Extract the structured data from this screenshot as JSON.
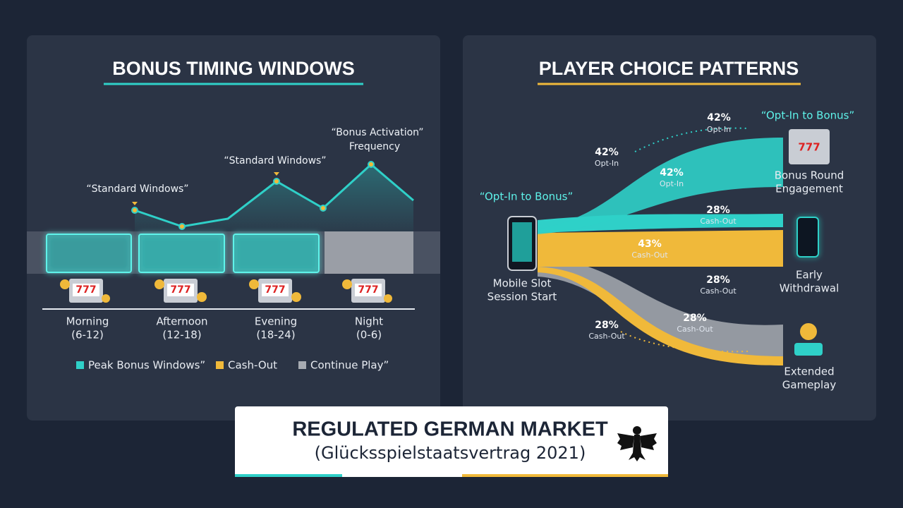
{
  "left_panel": {
    "title": "BONUS TIMING WINDOWS",
    "annotations": [
      "“Standard Windows”",
      "“Standard Windows”",
      [
        "“Bonus Activation”",
        "Frequency"
      ]
    ],
    "periods": [
      {
        "name": "Morning",
        "hours": "(6-12)"
      },
      {
        "name": "Afternoon",
        "hours": "(12-18)"
      },
      {
        "name": "Evening",
        "hours": "(18-24)"
      },
      {
        "name": "Night",
        "hours": "(0-6)"
      }
    ],
    "legend": [
      "Peak Bonus Windows”",
      "Cash-Out",
      "Continue Play”"
    ]
  },
  "right_panel": {
    "title": "PLAYER CHOICE PATTERNS",
    "source": {
      "tag": "“Opt-In to Bonus”",
      "label": [
        "Mobile Slot",
        "Session Start"
      ]
    },
    "targets": [
      {
        "tag": "“Opt-In to Bonus”",
        "label": [
          "Bonus Round",
          "Engagement"
        ]
      },
      {
        "label": [
          "Early",
          "Withdrawal"
        ]
      },
      {
        "label": [
          "Extended",
          "Gameplay"
        ]
      }
    ],
    "flow_labels": [
      {
        "pct": "42%",
        "kind": "Opt-In"
      },
      {
        "pct": "42%",
        "kind": "Opt-In"
      },
      {
        "pct": "42%",
        "kind": "Opt-In"
      },
      {
        "pct": "28%",
        "kind": "Cash-Out"
      },
      {
        "pct": "43%",
        "kind": "Cash-Out"
      },
      {
        "pct": "28%",
        "kind": "Cash-Out"
      },
      {
        "pct": "28%",
        "kind": "Cash-Out"
      },
      {
        "pct": "28%",
        "kind": "Cash-Out"
      }
    ]
  },
  "footer": {
    "title": "REGULATED GERMAN MARKET",
    "subtitle": "(Glücksspielstaatsvertrag 2021)"
  }
}
